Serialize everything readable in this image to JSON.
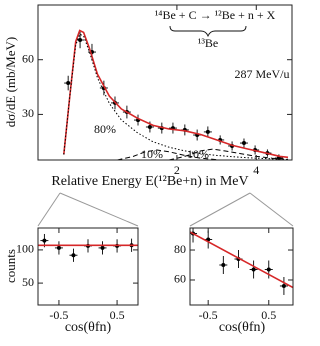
{
  "chart_data": [
    {
      "type": "scatter",
      "xlabel": "Relative Energy E(¹²Be+n) in MeV",
      "ylabel": "dσ/dE (mb/MeV)",
      "annotations": [
        "¹⁴Be + C → ¹²Be + n + X",
        "¹³Be",
        "287 MeV/u",
        "80%",
        "10%",
        "10%"
      ],
      "xlim": [
        -1.5,
        4.9
      ],
      "ylim": [
        5,
        90
      ],
      "xticks": [
        2,
        4
      ],
      "yticks": [
        30,
        60
      ],
      "series": [
        {
          "style": "points",
          "color": "#000000",
          "x": [
            -0.74,
            -0.44,
            -0.14,
            0.16,
            0.44,
            0.74,
            1.02,
            1.32,
            1.62,
            1.9,
            2.2,
            2.51,
            2.78,
            3.09,
            3.39,
            3.69,
            3.97,
            4.28,
            4.57
          ],
          "values": [
            47.2,
            70.8,
            64.2,
            44.5,
            36.3,
            31.3,
            26.9,
            23.1,
            22.5,
            22.5,
            21.5,
            18.7,
            20.4,
            16,
            12.7,
            14.3,
            10.5,
            8.8,
            6.1
          ],
          "errors": [
            4,
            4.5,
            4.5,
            4,
            3.5,
            3.5,
            3,
            3,
            3,
            3,
            3,
            3,
            3,
            2.5,
            2.5,
            2.5,
            2.5,
            2,
            2
          ]
        },
        {
          "style": "solid",
          "color": "#d62728",
          "x": [
            -0.85,
            -0.7,
            -0.55,
            -0.45,
            -0.35,
            -0.2,
            0,
            0.3,
            0.6,
            1,
            1.4,
            1.8,
            2.2,
            2.6,
            3,
            3.4,
            3.8,
            4.2,
            4.6,
            4.8
          ],
          "values": [
            8,
            40,
            70,
            76,
            75,
            66,
            52,
            40,
            33,
            28,
            24,
            22,
            21,
            19,
            16,
            13,
            11,
            9,
            7,
            6.5
          ]
        },
        {
          "style": "dotted",
          "color": "#000000",
          "x": [
            -0.85,
            -0.7,
            -0.55,
            -0.45,
            -0.35,
            -0.2,
            0,
            0.3,
            0.6,
            1,
            1.4,
            1.8,
            2.2,
            2.6,
            3,
            3.4,
            3.8,
            4.2,
            4.8
          ],
          "values": [
            8,
            40,
            68,
            74,
            73,
            64,
            50,
            36,
            27,
            20,
            15,
            12,
            10,
            8.5,
            7.5,
            6.8,
            6.2,
            5.8,
            5.3
          ]
        },
        {
          "style": "dashed",
          "color": "#000000",
          "x": [
            0.5,
            0.9,
            1.2,
            1.5,
            1.8,
            2.2,
            2.6,
            3
          ],
          "values": [
            5,
            7,
            9.5,
            10.5,
            9.5,
            7.5,
            6,
            5.2
          ]
        },
        {
          "style": "dashed",
          "color": "#000000",
          "x": [
            1.8,
            2.2,
            2.6,
            2.9,
            3.2,
            3.6,
            4,
            4.4,
            4.8
          ],
          "values": [
            5,
            7,
            10,
            11,
            10,
            8.5,
            7,
            6,
            5.4
          ]
        }
      ]
    },
    {
      "type": "scatter",
      "xlabel": "cos(θfn)",
      "ylabel": "counts",
      "xlim": [
        -0.86,
        0.86
      ],
      "ylim": [
        17,
        133
      ],
      "xticks": [
        -0.5,
        0.5
      ],
      "yticks": [
        50,
        100
      ],
      "series": [
        {
          "style": "points",
          "color": "#000000",
          "x": [
            -0.75,
            -0.5,
            -0.25,
            0,
            0.25,
            0.5,
            0.75
          ],
          "values": [
            114,
            103,
            92,
            106,
            103,
            106,
            107
          ],
          "errors": [
            10,
            10,
            10,
            10,
            10,
            10,
            10
          ]
        },
        {
          "style": "solid",
          "color": "#d62728",
          "x": [
            -0.86,
            0.86
          ],
          "values": [
            107,
            107
          ]
        }
      ]
    },
    {
      "type": "scatter",
      "xlabel": "cos(θfn)",
      "xlim": [
        -0.8,
        0.9
      ],
      "ylim": [
        43.3,
        94.7
      ],
      "xticks": [
        -0.5,
        0.5
      ],
      "yticks": [
        60,
        80
      ],
      "series": [
        {
          "style": "points",
          "color": "#000000",
          "x": [
            -0.75,
            -0.5,
            -0.25,
            0,
            0.25,
            0.5,
            0.75
          ],
          "values": [
            91,
            87,
            70,
            74,
            67,
            67,
            56
          ],
          "errors": [
            6,
            6,
            6,
            6,
            6,
            6,
            6
          ]
        },
        {
          "style": "solid",
          "color": "#d62728",
          "x": [
            -0.8,
            0.9
          ],
          "values": [
            92,
            55
          ]
        }
      ]
    }
  ]
}
